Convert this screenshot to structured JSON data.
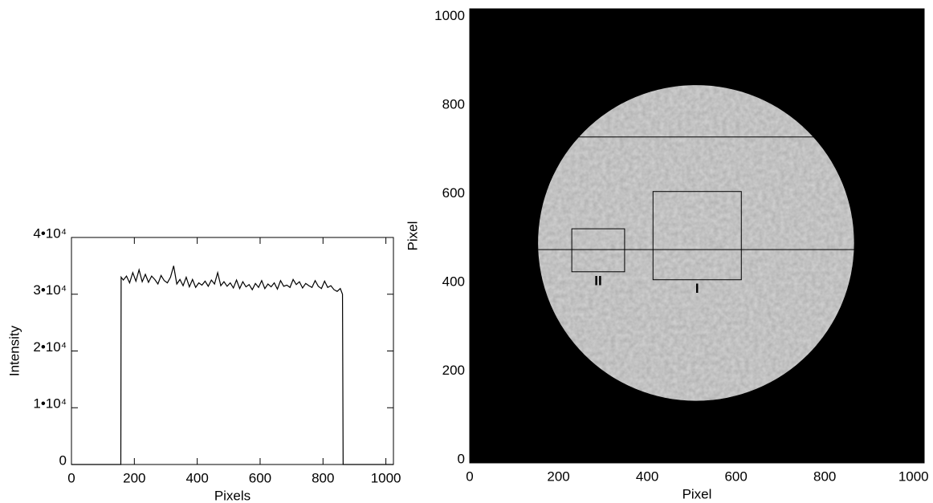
{
  "chart_data": [
    {
      "type": "line",
      "xlabel": "Pixels",
      "ylabel": "Intensity",
      "color": "#000000",
      "x": [
        0,
        157,
        158,
        165,
        175,
        185,
        195,
        205,
        215,
        225,
        235,
        245,
        255,
        265,
        275,
        285,
        295,
        305,
        315,
        325,
        335,
        345,
        355,
        365,
        375,
        385,
        395,
        405,
        415,
        425,
        435,
        445,
        455,
        465,
        475,
        485,
        495,
        505,
        515,
        525,
        535,
        545,
        555,
        565,
        575,
        585,
        595,
        605,
        615,
        625,
        635,
        645,
        655,
        665,
        675,
        685,
        695,
        705,
        715,
        725,
        735,
        745,
        755,
        765,
        775,
        785,
        795,
        805,
        815,
        825,
        835,
        845,
        855,
        862,
        864,
        1024
      ],
      "values": [
        0,
        0,
        33000,
        32500,
        33200,
        32000,
        33800,
        32300,
        34300,
        32200,
        33500,
        32100,
        33200,
        32600,
        31800,
        33300,
        32400,
        32000,
        33000,
        35000,
        31800,
        32600,
        31500,
        33000,
        31300,
        32600,
        31200,
        32000,
        31600,
        32300,
        31400,
        32500,
        31800,
        33800,
        31500,
        32200,
        31400,
        32000,
        31100,
        32500,
        31000,
        32200,
        31300,
        31700,
        30800,
        31900,
        31200,
        32400,
        31000,
        31800,
        31300,
        32000,
        30900,
        32400,
        31400,
        31600,
        31200,
        32600,
        31700,
        32200,
        31100,
        31900,
        31500,
        31200,
        32400,
        31400,
        31000,
        32300,
        31200,
        31500,
        30800,
        30500,
        31000,
        30000,
        0,
        0
      ],
      "xlim": [
        0,
        1024
      ],
      "xticks": [
        0,
        200,
        400,
        600,
        800,
        1000
      ],
      "ylim": [
        0,
        40000
      ],
      "yticks": [
        0,
        {
          "value": 10000,
          "label": "1•10⁴"
        },
        {
          "value": 20000,
          "label": "2•10⁴"
        },
        {
          "value": 30000,
          "label": "3•10⁴"
        },
        {
          "value": 40000,
          "label": "4•10⁴"
        }
      ]
    },
    {
      "type": "image",
      "xlabel": "Pixel",
      "ylabel": "Pixel",
      "xlim": [
        0,
        1024
      ],
      "xticks": [
        0,
        200,
        400,
        600,
        800,
        1000
      ],
      "ylim": [
        0,
        1024
      ],
      "yticks": [
        0,
        200,
        400,
        600,
        800,
        1000
      ],
      "disk": {
        "center": [
          510,
          496
        ],
        "radius": 356
      },
      "lines": [
        {
          "x": [
            154,
            866
          ],
          "y": 481
        },
        {
          "x": [
            230,
            791
          ],
          "y": 735
        }
      ],
      "regions": [
        {
          "label": "I",
          "x": [
            413,
            612
          ],
          "y": [
            413,
            612
          ]
        },
        {
          "label": "II",
          "x": [
            230,
            349
          ],
          "y": [
            431,
            528
          ]
        }
      ]
    }
  ]
}
